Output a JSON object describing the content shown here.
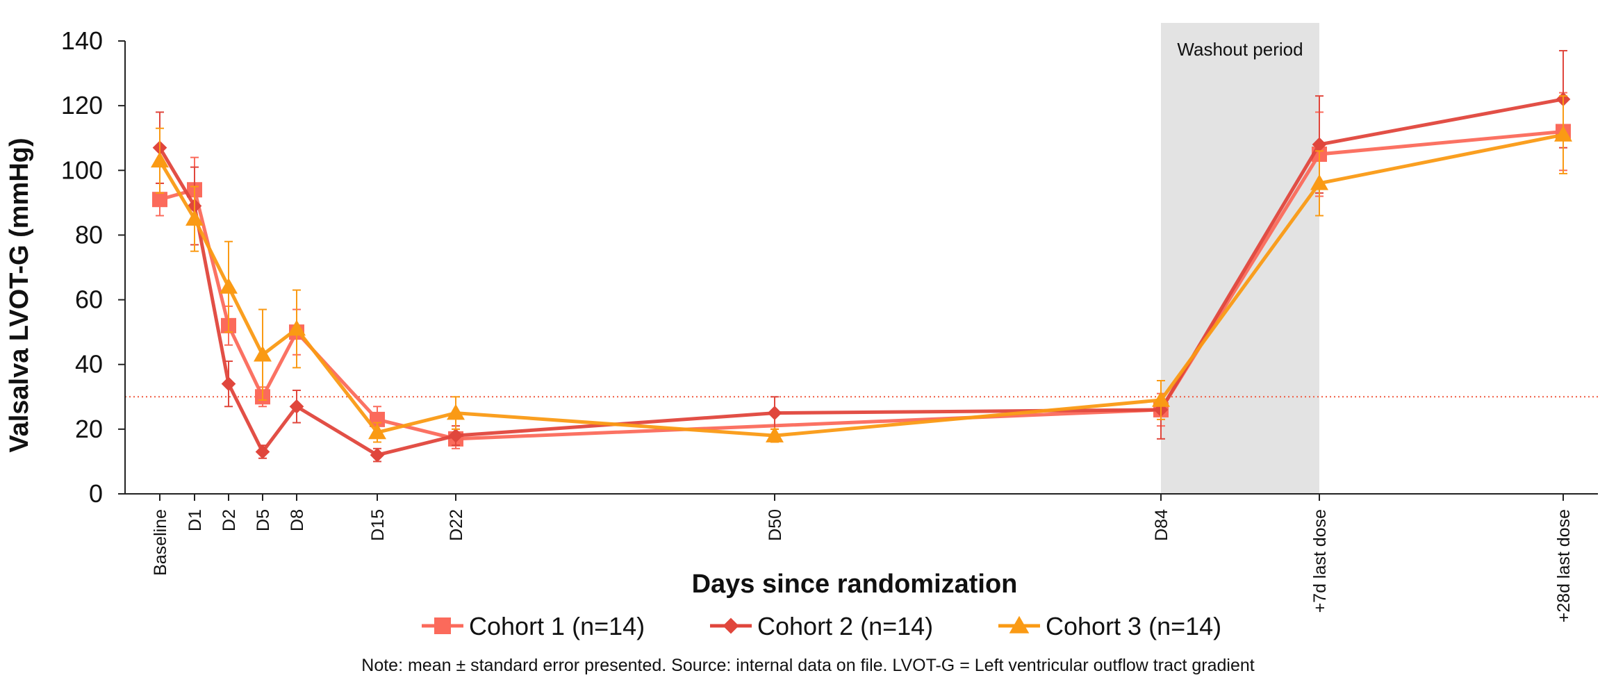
{
  "chart_data": {
    "type": "line",
    "ylabel": "Valsalva LVOT-G (mmHg)",
    "xlabel": "Days since randomization",
    "ylim": [
      0,
      140
    ],
    "yticks": [
      0,
      20,
      40,
      60,
      80,
      100,
      120,
      140
    ],
    "categories": [
      "Baseline",
      "D1",
      "D2",
      "D5",
      "D8",
      "D15",
      "D22",
      "D50",
      "D84",
      "+7d last dose",
      "+28d last dose"
    ],
    "reference_line": {
      "y": 30,
      "style": "dotted",
      "color": "#f05a40"
    },
    "shaded_region": {
      "label": "Washout period",
      "from": "D84",
      "to": "+7d last dose",
      "color": "#e3e3e3"
    },
    "grid": false,
    "legend_position": "bottom",
    "series": [
      {
        "name": "Cohort 1 (n=14)",
        "color": "#fb6a5b",
        "marker": "square",
        "values": [
          91,
          94,
          52,
          30,
          50,
          23,
          17,
          null,
          26,
          105,
          112
        ],
        "errors": [
          5,
          10,
          6,
          3,
          7,
          4,
          3,
          null,
          5,
          13,
          12
        ]
      },
      {
        "name": "Cohort 2 (n=14)",
        "color": "#e0463c",
        "marker": "diamond",
        "values": [
          107,
          89,
          34,
          13,
          27,
          12,
          18,
          25,
          26,
          108,
          122
        ],
        "errors": [
          11,
          12,
          7,
          2,
          5,
          2,
          3,
          5,
          9,
          15,
          15
        ]
      },
      {
        "name": "Cohort 3 (n=14)",
        "color": "#fa9a14",
        "marker": "triangle",
        "values": [
          103,
          85,
          64,
          43,
          51,
          19,
          25,
          18,
          29,
          96,
          111
        ],
        "errors": [
          10,
          10,
          14,
          14,
          12,
          3,
          5,
          2,
          6,
          10,
          12
        ]
      }
    ]
  },
  "note": "Note: mean ± standard error presented. Source: internal data on file. LVOT-G = Left ventricular outflow tract gradient"
}
